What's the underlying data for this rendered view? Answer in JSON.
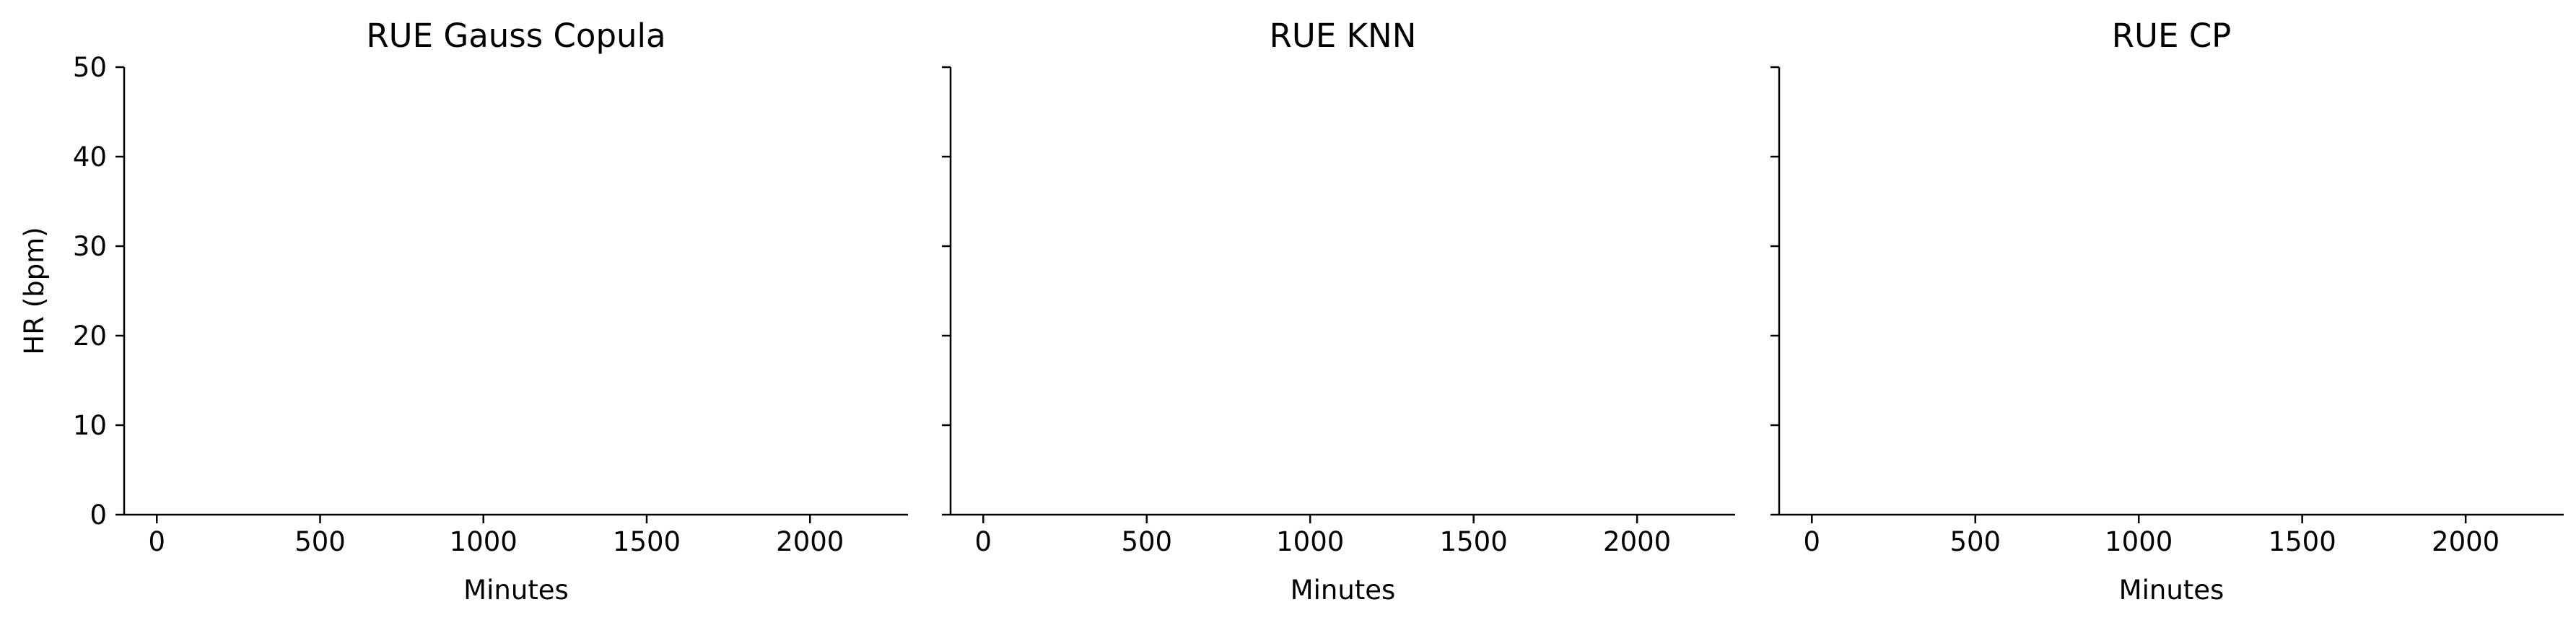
{
  "chart_data": [
    {
      "type": "line",
      "title": "RUE Gauss Copula",
      "xlabel": "Minutes",
      "ylabel": "HR (bpm)",
      "xlim": [
        -100,
        2300
      ],
      "ylim": [
        0,
        50
      ],
      "xticks": [
        0,
        500,
        1000,
        1500,
        2000
      ],
      "yticks": [
        0,
        10,
        20,
        30,
        40,
        50
      ],
      "show_ytick_labels": true,
      "grid": false,
      "series": []
    },
    {
      "type": "line",
      "title": "RUE KNN",
      "xlabel": "Minutes",
      "ylabel": "",
      "xlim": [
        -100,
        2300
      ],
      "ylim": [
        0,
        50
      ],
      "xticks": [
        0,
        500,
        1000,
        1500,
        2000
      ],
      "yticks": [
        0,
        10,
        20,
        30,
        40,
        50
      ],
      "show_ytick_labels": false,
      "grid": false,
      "series": []
    },
    {
      "type": "line",
      "title": "RUE CP",
      "xlabel": "Minutes",
      "ylabel": "",
      "xlim": [
        -100,
        2300
      ],
      "ylim": [
        0,
        50
      ],
      "xticks": [
        0,
        500,
        1000,
        1500,
        2000
      ],
      "yticks": [
        0,
        10,
        20,
        30,
        40,
        50
      ],
      "show_ytick_labels": false,
      "grid": false,
      "series": []
    }
  ]
}
